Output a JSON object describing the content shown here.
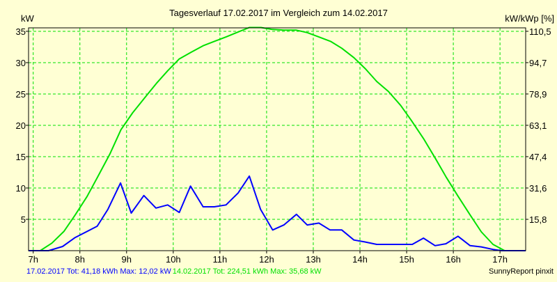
{
  "chart_data": {
    "type": "line",
    "title": "Tagesverlauf 17.02.2017 im Vergleich zum 14.02.2017",
    "ylabel": "kW",
    "ylabel_right": "kW/kWp [%]",
    "xlim": [
      6.9,
      17.55
    ],
    "ylim": [
      0,
      35.55
    ],
    "x_ticks": [
      7,
      8,
      9,
      10,
      11,
      12,
      13,
      14,
      15,
      16,
      17
    ],
    "x_tick_labels": [
      "7h",
      "8h",
      "9h",
      "10h",
      "11h",
      "12h",
      "13h",
      "14h",
      "15h",
      "16h",
      "17h"
    ],
    "y_ticks": [
      5,
      10,
      15,
      20,
      25,
      30,
      35
    ],
    "y_tick_labels": [
      "5",
      "10",
      "15",
      "20",
      "25",
      "30",
      "35"
    ],
    "y_right_ticks": [
      5,
      10,
      15,
      20,
      25,
      30,
      35
    ],
    "y_right_tick_labels": [
      "15,8",
      "31,6",
      "47,4",
      "63,1",
      "78,9",
      "94,7",
      "110,5"
    ],
    "grid": true,
    "colors": {
      "series1": "#0000ff",
      "series2": "#00e000",
      "grid": "#00e000",
      "background": "#ffffd4"
    },
    "series": [
      {
        "name": "17.02.2017",
        "color": "#0000ff",
        "points": [
          [
            6.9,
            0
          ],
          [
            7.33,
            0
          ],
          [
            7.63,
            0.67
          ],
          [
            7.9,
            2.1
          ],
          [
            8.37,
            3.9
          ],
          [
            8.6,
            6.6
          ],
          [
            8.87,
            10.8
          ],
          [
            9.1,
            6.0
          ],
          [
            9.37,
            8.8
          ],
          [
            9.63,
            6.8
          ],
          [
            9.88,
            7.3
          ],
          [
            10.13,
            6.1
          ],
          [
            10.37,
            10.3
          ],
          [
            10.64,
            7.0
          ],
          [
            10.88,
            7.0
          ],
          [
            11.13,
            7.3
          ],
          [
            11.39,
            9.2
          ],
          [
            11.63,
            11.9
          ],
          [
            11.87,
            6.6
          ],
          [
            12.13,
            3.3
          ],
          [
            12.37,
            4.1
          ],
          [
            12.64,
            5.8
          ],
          [
            12.87,
            4.1
          ],
          [
            13.12,
            4.4
          ],
          [
            13.36,
            3.3
          ],
          [
            13.61,
            3.3
          ],
          [
            13.87,
            1.7
          ],
          [
            14.1,
            1.4
          ],
          [
            14.36,
            1.0
          ],
          [
            14.61,
            1.0
          ],
          [
            14.87,
            1.0
          ],
          [
            15.12,
            1.0
          ],
          [
            15.36,
            2.0
          ],
          [
            15.61,
            0.8
          ],
          [
            15.84,
            1.1
          ],
          [
            16.1,
            2.3
          ],
          [
            16.36,
            0.8
          ],
          [
            16.6,
            0.6
          ],
          [
            16.85,
            0.2
          ],
          [
            17.03,
            0
          ],
          [
            17.55,
            0
          ]
        ]
      },
      {
        "name": "14.02.2017",
        "color": "#00e000",
        "points": [
          [
            6.9,
            0
          ],
          [
            7.15,
            0
          ],
          [
            7.4,
            1.2
          ],
          [
            7.66,
            3.1
          ],
          [
            7.9,
            5.7
          ],
          [
            8.15,
            8.6
          ],
          [
            8.39,
            11.9
          ],
          [
            8.64,
            15.4
          ],
          [
            8.88,
            19.3
          ],
          [
            9.13,
            22.0
          ],
          [
            9.39,
            24.4
          ],
          [
            9.64,
            26.7
          ],
          [
            9.88,
            28.7
          ],
          [
            10.13,
            30.6
          ],
          [
            10.39,
            31.7
          ],
          [
            10.64,
            32.7
          ],
          [
            10.88,
            33.4
          ],
          [
            11.13,
            34.1
          ],
          [
            11.39,
            34.9
          ],
          [
            11.63,
            35.6
          ],
          [
            11.88,
            35.6
          ],
          [
            12.12,
            35.3
          ],
          [
            12.37,
            35.2
          ],
          [
            12.63,
            35.2
          ],
          [
            12.87,
            34.8
          ],
          [
            13.12,
            34.1
          ],
          [
            13.37,
            33.4
          ],
          [
            13.61,
            32.3
          ],
          [
            13.87,
            30.8
          ],
          [
            14.12,
            29.0
          ],
          [
            14.36,
            27.0
          ],
          [
            14.61,
            25.4
          ],
          [
            14.87,
            23.2
          ],
          [
            15.1,
            20.8
          ],
          [
            15.36,
            17.9
          ],
          [
            15.61,
            14.8
          ],
          [
            15.85,
            11.7
          ],
          [
            16.1,
            8.7
          ],
          [
            16.36,
            5.7
          ],
          [
            16.6,
            3.0
          ],
          [
            16.85,
            1.0
          ],
          [
            17.1,
            0
          ],
          [
            17.55,
            0
          ]
        ]
      }
    ],
    "legend": {
      "s1": "17.02.2017 Tot: 41,18 kWh Max: 12,02 kW",
      "s2": "14.02.2017 Tot: 224,51 kWh Max: 35,68 kW",
      "placement": "bottom-left"
    },
    "credit": "SunnyReport pinxit"
  }
}
